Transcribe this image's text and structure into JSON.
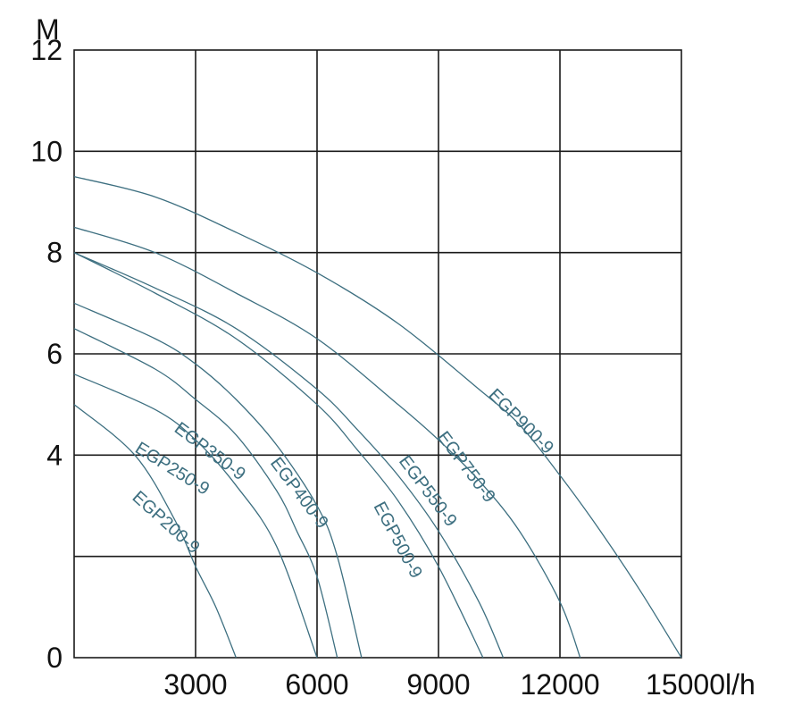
{
  "chart_data": {
    "type": "line",
    "title": "",
    "xlabel": "l/h",
    "ylabel": "M",
    "xlim": [
      0,
      15000
    ],
    "ylim": [
      0,
      12
    ],
    "xticks": [
      3000,
      6000,
      9000,
      12000,
      15000
    ],
    "yticks": [
      0,
      4,
      6,
      8,
      10,
      12
    ],
    "grid": true,
    "curve_color": "#3d6f80",
    "series": [
      {
        "name": "EGP200-9",
        "x": [
          0,
          1500,
          2500,
          3000,
          3500,
          4000
        ],
        "y": [
          5.0,
          4.0,
          2.7,
          1.8,
          1.0,
          0
        ]
      },
      {
        "name": "EGP250-9",
        "x": [
          0,
          2000,
          3000,
          4000,
          5000,
          6000
        ],
        "y": [
          5.6,
          4.9,
          4.3,
          3.4,
          2.2,
          0
        ]
      },
      {
        "name": "EGP350-9",
        "x": [
          0,
          2000,
          3000,
          4000,
          5000,
          5500,
          6000,
          6500
        ],
        "y": [
          6.5,
          5.7,
          5.1,
          4.4,
          3.3,
          2.5,
          1.6,
          0
        ]
      },
      {
        "name": "EGP400-9",
        "x": [
          0,
          2000,
          3000,
          4000,
          5000,
          6000,
          6500,
          7100
        ],
        "y": [
          7.0,
          6.3,
          5.8,
          5.1,
          4.2,
          3.0,
          2.0,
          0
        ]
      },
      {
        "name": "EGP500-9",
        "x": [
          0,
          2000,
          4000,
          6000,
          7000,
          8000,
          9000,
          10100
        ],
        "y": [
          8.0,
          7.2,
          6.3,
          5.0,
          4.1,
          3.1,
          1.8,
          0
        ]
      },
      {
        "name": "EGP550-9",
        "x": [
          0,
          2000,
          4000,
          6000,
          7000,
          8000,
          9000,
          10000,
          10600
        ],
        "y": [
          8.0,
          7.3,
          6.5,
          5.3,
          4.5,
          3.6,
          2.5,
          1.1,
          0
        ]
      },
      {
        "name": "EGP750-9",
        "x": [
          0,
          2000,
          4000,
          6000,
          8000,
          9000,
          10000,
          11000,
          12000,
          12500
        ],
        "y": [
          8.5,
          8.0,
          7.2,
          6.3,
          5.0,
          4.3,
          3.5,
          2.5,
          1.1,
          0
        ]
      },
      {
        "name": "EGP900-9",
        "x": [
          0,
          2000,
          4000,
          6000,
          8000,
          10000,
          11000,
          12000,
          13000,
          14000,
          15000
        ],
        "y": [
          9.5,
          9.1,
          8.4,
          7.6,
          6.6,
          5.3,
          4.6,
          3.6,
          2.5,
          1.3,
          0
        ]
      }
    ]
  }
}
